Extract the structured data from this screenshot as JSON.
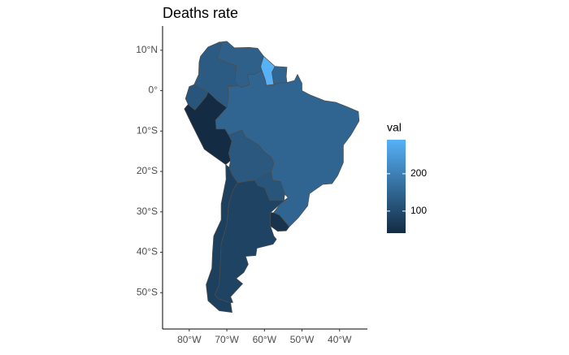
{
  "chart_data": {
    "type": "choropleth",
    "title": "Deaths rate",
    "values": [
      130,
      140,
      291,
      150,
      120,
      41,
      150,
      125,
      120,
      80,
      85,
      55
    ],
    "xlim": [
      -87.1,
      -32.6
    ],
    "ylim": [
      -59,
      16
    ],
    "xticks": [
      {
        "value": -80,
        "label": "80°W"
      },
      {
        "value": -70,
        "label": "70°W"
      },
      {
        "value": -60,
        "label": "60°W"
      },
      {
        "value": -50,
        "label": "50°W"
      },
      {
        "value": -40,
        "label": "40°W"
      }
    ],
    "yticks": [
      {
        "value": 10,
        "label": "10°N"
      },
      {
        "value": 0,
        "label": "0°"
      },
      {
        "value": -10,
        "label": "10°S"
      },
      {
        "value": -20,
        "label": "20°S"
      },
      {
        "value": -30,
        "label": "30°S"
      },
      {
        "value": -40,
        "label": "40°S"
      },
      {
        "value": -50,
        "label": "50°S"
      }
    ],
    "legend": {
      "title": "val",
      "lim": [
        41,
        291
      ],
      "ticks": [
        100,
        200
      ],
      "low_color": "#132B43",
      "high_color": "#56B1F7"
    },
    "border_color": "#4d4d4d"
  }
}
